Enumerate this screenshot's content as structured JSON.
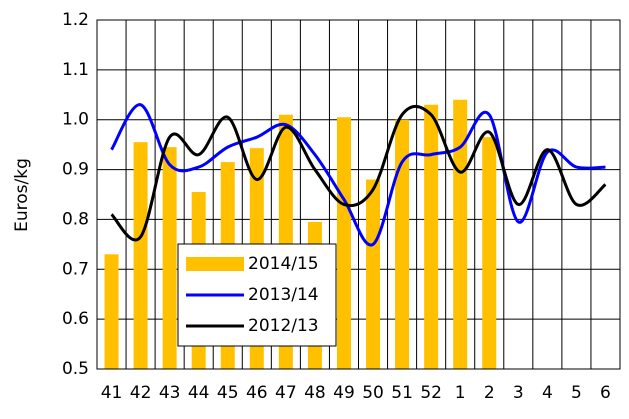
{
  "chart_data": {
    "type": "bar-line",
    "y_label": "Euros/kg",
    "categories": [
      "41",
      "42",
      "43",
      "44",
      "45",
      "46",
      "47",
      "48",
      "49",
      "50",
      "51",
      "52",
      "1",
      "2",
      "3",
      "4",
      "5",
      "6"
    ],
    "series": [
      {
        "name": "2014/15",
        "type": "bar",
        "color": "#ffc000",
        "values": [
          0.73,
          0.955,
          0.945,
          0.855,
          0.915,
          0.943,
          1.01,
          0.795,
          1.005,
          0.88,
          1.0,
          1.03,
          1.04,
          0.965,
          null,
          null,
          null,
          null
        ]
      },
      {
        "name": "2013/14",
        "type": "line",
        "color": "#0000ff",
        "values": [
          0.94,
          1.03,
          0.91,
          0.905,
          0.945,
          0.965,
          0.99,
          0.93,
          0.84,
          0.75,
          0.915,
          0.93,
          0.945,
          1.01,
          0.795,
          0.935,
          0.905,
          0.905
        ]
      },
      {
        "name": "2012/13",
        "type": "line",
        "color": "#000000",
        "values": [
          0.81,
          0.765,
          0.965,
          0.93,
          1.005,
          0.88,
          0.985,
          0.9,
          0.83,
          0.86,
          1.01,
          1.01,
          0.895,
          0.975,
          0.83,
          0.94,
          0.83,
          0.87
        ]
      }
    ],
    "ylim": [
      0.5,
      1.2
    ],
    "yticks": [
      0.5,
      0.6,
      0.7,
      0.8,
      0.9,
      {
        "value": 1,
        "label": "1.0"
      },
      1.1,
      1.2
    ],
    "grid": true,
    "smooth": true
  }
}
